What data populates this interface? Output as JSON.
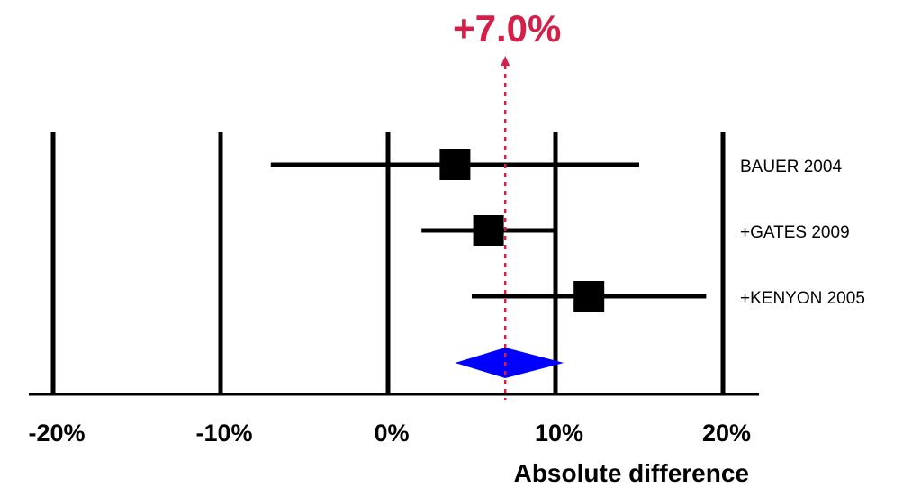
{
  "chart_data": {
    "type": "forest",
    "xlabel": "Absolute difference",
    "xlim": [
      -20,
      20
    ],
    "ticks": [
      {
        "value": -20,
        "label": "-20%"
      },
      {
        "value": -10,
        "label": "-10%"
      },
      {
        "value": 0,
        "label": "0%"
      },
      {
        "value": 10,
        "label": "10%"
      },
      {
        "value": 20,
        "label": "20%"
      }
    ],
    "vertical_gridlines": true,
    "studies": [
      {
        "label": "BAUER 2004",
        "estimate": 4.0,
        "ci_low": -7.0,
        "ci_high": 15.0
      },
      {
        "label": "+GATES 2009",
        "estimate": 6.0,
        "ci_low": 2.0,
        "ci_high": 10.0
      },
      {
        "label": "+KENYON 2005",
        "estimate": 12.0,
        "ci_low": 5.0,
        "ci_high": 19.0
      }
    ],
    "pooled": {
      "estimate": 7.0,
      "ci_low": 4.0,
      "ci_high": 10.5,
      "label": "+7.0%"
    },
    "colors": {
      "marks": "#000000",
      "pooled_diamond": "#0000ff",
      "pooled_line": "#d42048"
    }
  }
}
